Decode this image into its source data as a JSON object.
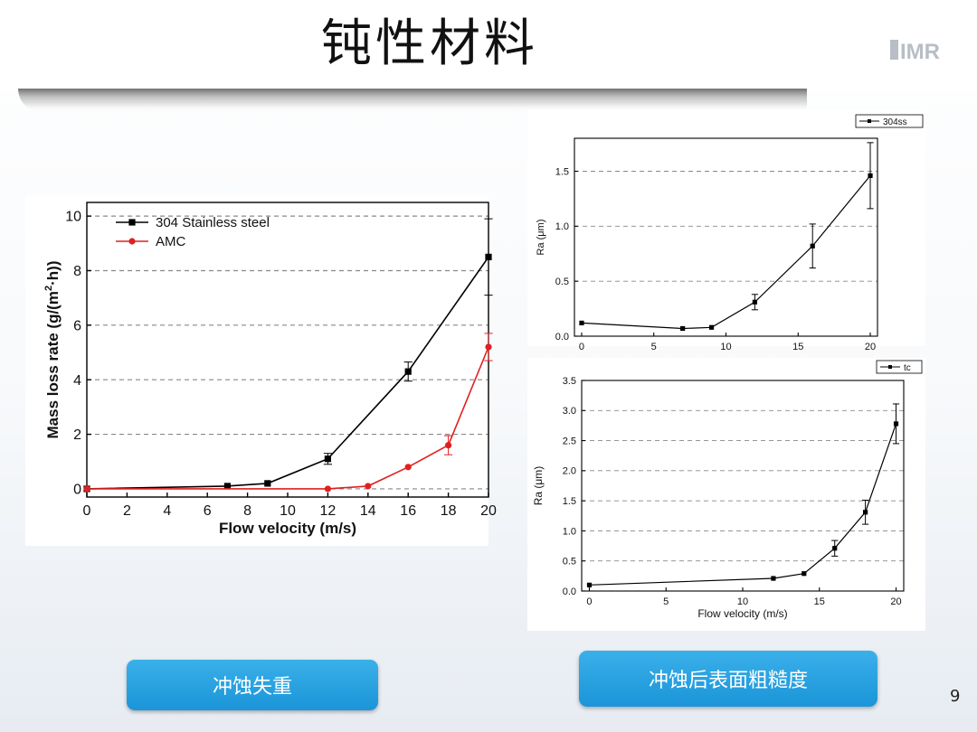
{
  "slide": {
    "title": "钝性材料",
    "logo_text": "IMR",
    "page_number": "9"
  },
  "buttons": {
    "left_label": "冲蚀失重",
    "right_label": "冲蚀后表面粗糙度"
  },
  "chart_data": [
    {
      "type": "line",
      "xlabel": "Flow velocity (m/s)",
      "ylabel": "Mass loss rate (g/(m²·h))",
      "ylabel_main": "Mass loss rate (g/(m",
      "ylabel_sup": "2",
      "ylabel_tail": "·h))",
      "xlim": [
        0,
        20
      ],
      "ylim": [
        -0.3,
        10.5
      ],
      "xticks": [
        0,
        2,
        4,
        6,
        8,
        10,
        12,
        14,
        16,
        18,
        20
      ],
      "yticks": [
        0,
        2,
        4,
        6,
        8,
        10
      ],
      "grid": "horizontal dashed",
      "legend_position": "top-left",
      "series": [
        {
          "name": "304 Stainless steel",
          "color": "#000000",
          "marker": "square",
          "x": [
            0,
            7,
            9,
            12,
            16,
            20
          ],
          "y": [
            0,
            0.1,
            0.2,
            1.1,
            4.3,
            8.5
          ],
          "err": [
            0,
            0,
            0,
            0.2,
            0.35,
            1.4
          ]
        },
        {
          "name": "AMC",
          "color": "#e02020",
          "marker": "circle",
          "x": [
            0,
            12,
            14,
            16,
            18,
            20
          ],
          "y": [
            0,
            0,
            0.1,
            0.8,
            1.6,
            5.2
          ],
          "err": [
            0,
            0,
            0,
            0,
            0.35,
            0.5
          ]
        }
      ]
    },
    {
      "type": "line",
      "xlabel": "",
      "ylabel": "Ra (μm)",
      "xlim": [
        -0.5,
        20.5
      ],
      "ylim": [
        0,
        1.8
      ],
      "xticks": [
        0,
        5,
        10,
        15,
        20
      ],
      "yticks": [
        0.0,
        0.5,
        1.0,
        1.5
      ],
      "grid": "horizontal dashed",
      "legend_position": "top-right outside",
      "series": [
        {
          "name": "304ss",
          "color": "#000000",
          "marker": "square",
          "x": [
            0,
            7,
            9,
            12,
            16,
            20
          ],
          "y": [
            0.12,
            0.07,
            0.08,
            0.31,
            0.82,
            1.46
          ],
          "err": [
            0,
            0,
            0,
            0.07,
            0.2,
            0.3
          ]
        }
      ]
    },
    {
      "type": "line",
      "xlabel": "Flow velocity (m/s)",
      "ylabel": "Ra (μm)",
      "xlim": [
        -0.5,
        20.5
      ],
      "ylim": [
        0,
        3.5
      ],
      "xticks": [
        0,
        5,
        10,
        15,
        20
      ],
      "yticks": [
        0.0,
        0.5,
        1.0,
        1.5,
        2.0,
        2.5,
        3.0,
        3.5
      ],
      "grid": "horizontal dashed",
      "legend_position": "top-right outside",
      "series": [
        {
          "name": "tc",
          "color": "#000000",
          "marker": "square",
          "x": [
            0,
            12,
            14,
            16,
            18,
            20
          ],
          "y": [
            0.1,
            0.21,
            0.29,
            0.71,
            1.31,
            2.78
          ],
          "err": [
            0,
            0,
            0,
            0.13,
            0.2,
            0.33
          ]
        }
      ]
    }
  ]
}
